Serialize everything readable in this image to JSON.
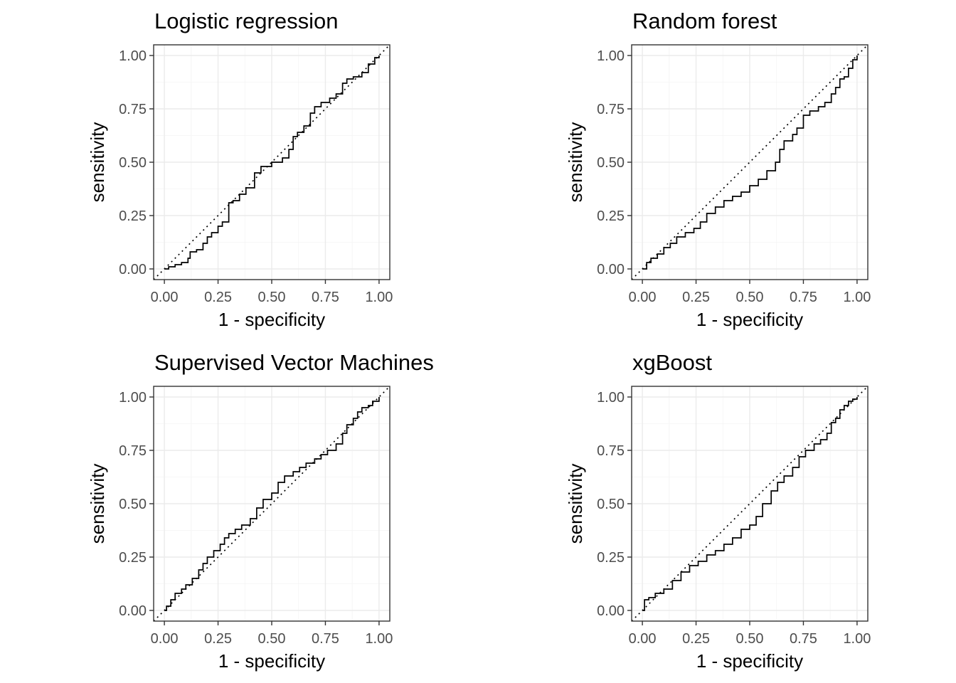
{
  "chart_data": [
    {
      "type": "line",
      "title": "Logistic regression",
      "xlabel": "1 - specificity",
      "ylabel": "sensitivity",
      "xlim": [
        0,
        1
      ],
      "ylim": [
        0,
        1
      ],
      "xticks": [
        "0.00",
        "0.25",
        "0.50",
        "0.75",
        "1.00"
      ],
      "yticks": [
        "0.00",
        "0.25",
        "0.50",
        "0.75",
        "1.00"
      ],
      "grid": true,
      "reference_line": "y = x (dotted)",
      "series": [
        {
          "x": [
            0,
            0.02,
            0.05,
            0.08,
            0.11,
            0.12,
            0.15,
            0.18,
            0.2,
            0.22,
            0.25,
            0.27,
            0.3,
            0.32,
            0.35,
            0.38,
            0.42,
            0.45,
            0.47,
            0.5,
            0.55,
            0.58,
            0.6,
            0.62,
            0.65,
            0.68,
            0.7,
            0.73,
            0.77,
            0.8,
            0.83,
            0.85,
            0.88,
            0.92,
            0.95,
            0.98,
            1
          ],
          "y": [
            0,
            0.01,
            0.02,
            0.03,
            0.05,
            0.08,
            0.09,
            0.12,
            0.15,
            0.17,
            0.2,
            0.22,
            0.31,
            0.32,
            0.35,
            0.38,
            0.45,
            0.48,
            0.48,
            0.5,
            0.52,
            0.56,
            0.62,
            0.64,
            0.67,
            0.73,
            0.76,
            0.78,
            0.8,
            0.82,
            0.87,
            0.89,
            0.9,
            0.92,
            0.96,
            0.99,
            1
          ]
        }
      ]
    },
    {
      "type": "line",
      "title": "Random forest",
      "xlabel": "1 - specificity",
      "ylabel": "sensitivity",
      "xlim": [
        0,
        1
      ],
      "ylim": [
        0,
        1
      ],
      "xticks": [
        "0.00",
        "0.25",
        "0.50",
        "0.75",
        "1.00"
      ],
      "yticks": [
        "0.00",
        "0.25",
        "0.50",
        "0.75",
        "1.00"
      ],
      "grid": true,
      "reference_line": "y = x (dotted)",
      "series": [
        {
          "x": [
            0,
            0.02,
            0.04,
            0.07,
            0.1,
            0.13,
            0.16,
            0.2,
            0.24,
            0.27,
            0.3,
            0.34,
            0.38,
            0.42,
            0.46,
            0.5,
            0.54,
            0.58,
            0.62,
            0.64,
            0.66,
            0.7,
            0.72,
            0.75,
            0.78,
            0.82,
            0.85,
            0.88,
            0.9,
            0.92,
            0.94,
            0.96,
            0.98,
            1
          ],
          "y": [
            0,
            0.03,
            0.05,
            0.07,
            0.1,
            0.12,
            0.15,
            0.17,
            0.19,
            0.22,
            0.26,
            0.29,
            0.32,
            0.34,
            0.36,
            0.39,
            0.42,
            0.46,
            0.5,
            0.56,
            0.6,
            0.63,
            0.66,
            0.72,
            0.74,
            0.76,
            0.78,
            0.82,
            0.85,
            0.89,
            0.9,
            0.94,
            0.98,
            1
          ]
        }
      ]
    },
    {
      "type": "line",
      "title": "Supervised Vector Machines",
      "xlabel": "1 - specificity",
      "ylabel": "sensitivity",
      "xlim": [
        0,
        1
      ],
      "ylim": [
        0,
        1
      ],
      "xticks": [
        "0.00",
        "0.25",
        "0.50",
        "0.75",
        "1.00"
      ],
      "yticks": [
        "0.00",
        "0.25",
        "0.50",
        "0.75",
        "1.00"
      ],
      "grid": true,
      "reference_line": "y = x (dotted)",
      "series": [
        {
          "x": [
            0,
            0.01,
            0.03,
            0.05,
            0.08,
            0.1,
            0.13,
            0.16,
            0.18,
            0.2,
            0.23,
            0.26,
            0.28,
            0.3,
            0.33,
            0.36,
            0.4,
            0.43,
            0.46,
            0.5,
            0.53,
            0.56,
            0.6,
            0.63,
            0.66,
            0.7,
            0.73,
            0.76,
            0.8,
            0.83,
            0.85,
            0.88,
            0.9,
            0.92,
            0.95,
            0.97,
            1
          ],
          "y": [
            0,
            0.02,
            0.05,
            0.08,
            0.1,
            0.12,
            0.15,
            0.19,
            0.22,
            0.25,
            0.28,
            0.31,
            0.34,
            0.36,
            0.38,
            0.4,
            0.43,
            0.48,
            0.52,
            0.55,
            0.6,
            0.63,
            0.65,
            0.67,
            0.69,
            0.71,
            0.73,
            0.75,
            0.78,
            0.83,
            0.87,
            0.9,
            0.93,
            0.95,
            0.96,
            0.98,
            1
          ]
        }
      ]
    },
    {
      "type": "line",
      "title": "xgBoost",
      "xlabel": "1 - specificity",
      "ylabel": "sensitivity",
      "xlim": [
        0,
        1
      ],
      "ylim": [
        0,
        1
      ],
      "xticks": [
        "0.00",
        "0.25",
        "0.50",
        "0.75",
        "1.00"
      ],
      "yticks": [
        "0.00",
        "0.25",
        "0.50",
        "0.75",
        "1.00"
      ],
      "grid": true,
      "reference_line": "y = x (dotted)",
      "series": [
        {
          "x": [
            0,
            0.01,
            0.03,
            0.06,
            0.1,
            0.14,
            0.18,
            0.22,
            0.26,
            0.3,
            0.34,
            0.38,
            0.42,
            0.46,
            0.5,
            0.53,
            0.56,
            0.6,
            0.63,
            0.66,
            0.7,
            0.73,
            0.76,
            0.8,
            0.83,
            0.86,
            0.88,
            0.9,
            0.92,
            0.94,
            0.96,
            0.98,
            1
          ],
          "y": [
            0,
            0.05,
            0.06,
            0.08,
            0.1,
            0.14,
            0.18,
            0.21,
            0.23,
            0.26,
            0.28,
            0.31,
            0.34,
            0.38,
            0.4,
            0.44,
            0.5,
            0.56,
            0.6,
            0.63,
            0.67,
            0.72,
            0.75,
            0.78,
            0.8,
            0.83,
            0.88,
            0.9,
            0.94,
            0.96,
            0.98,
            0.99,
            1
          ]
        }
      ]
    }
  ]
}
